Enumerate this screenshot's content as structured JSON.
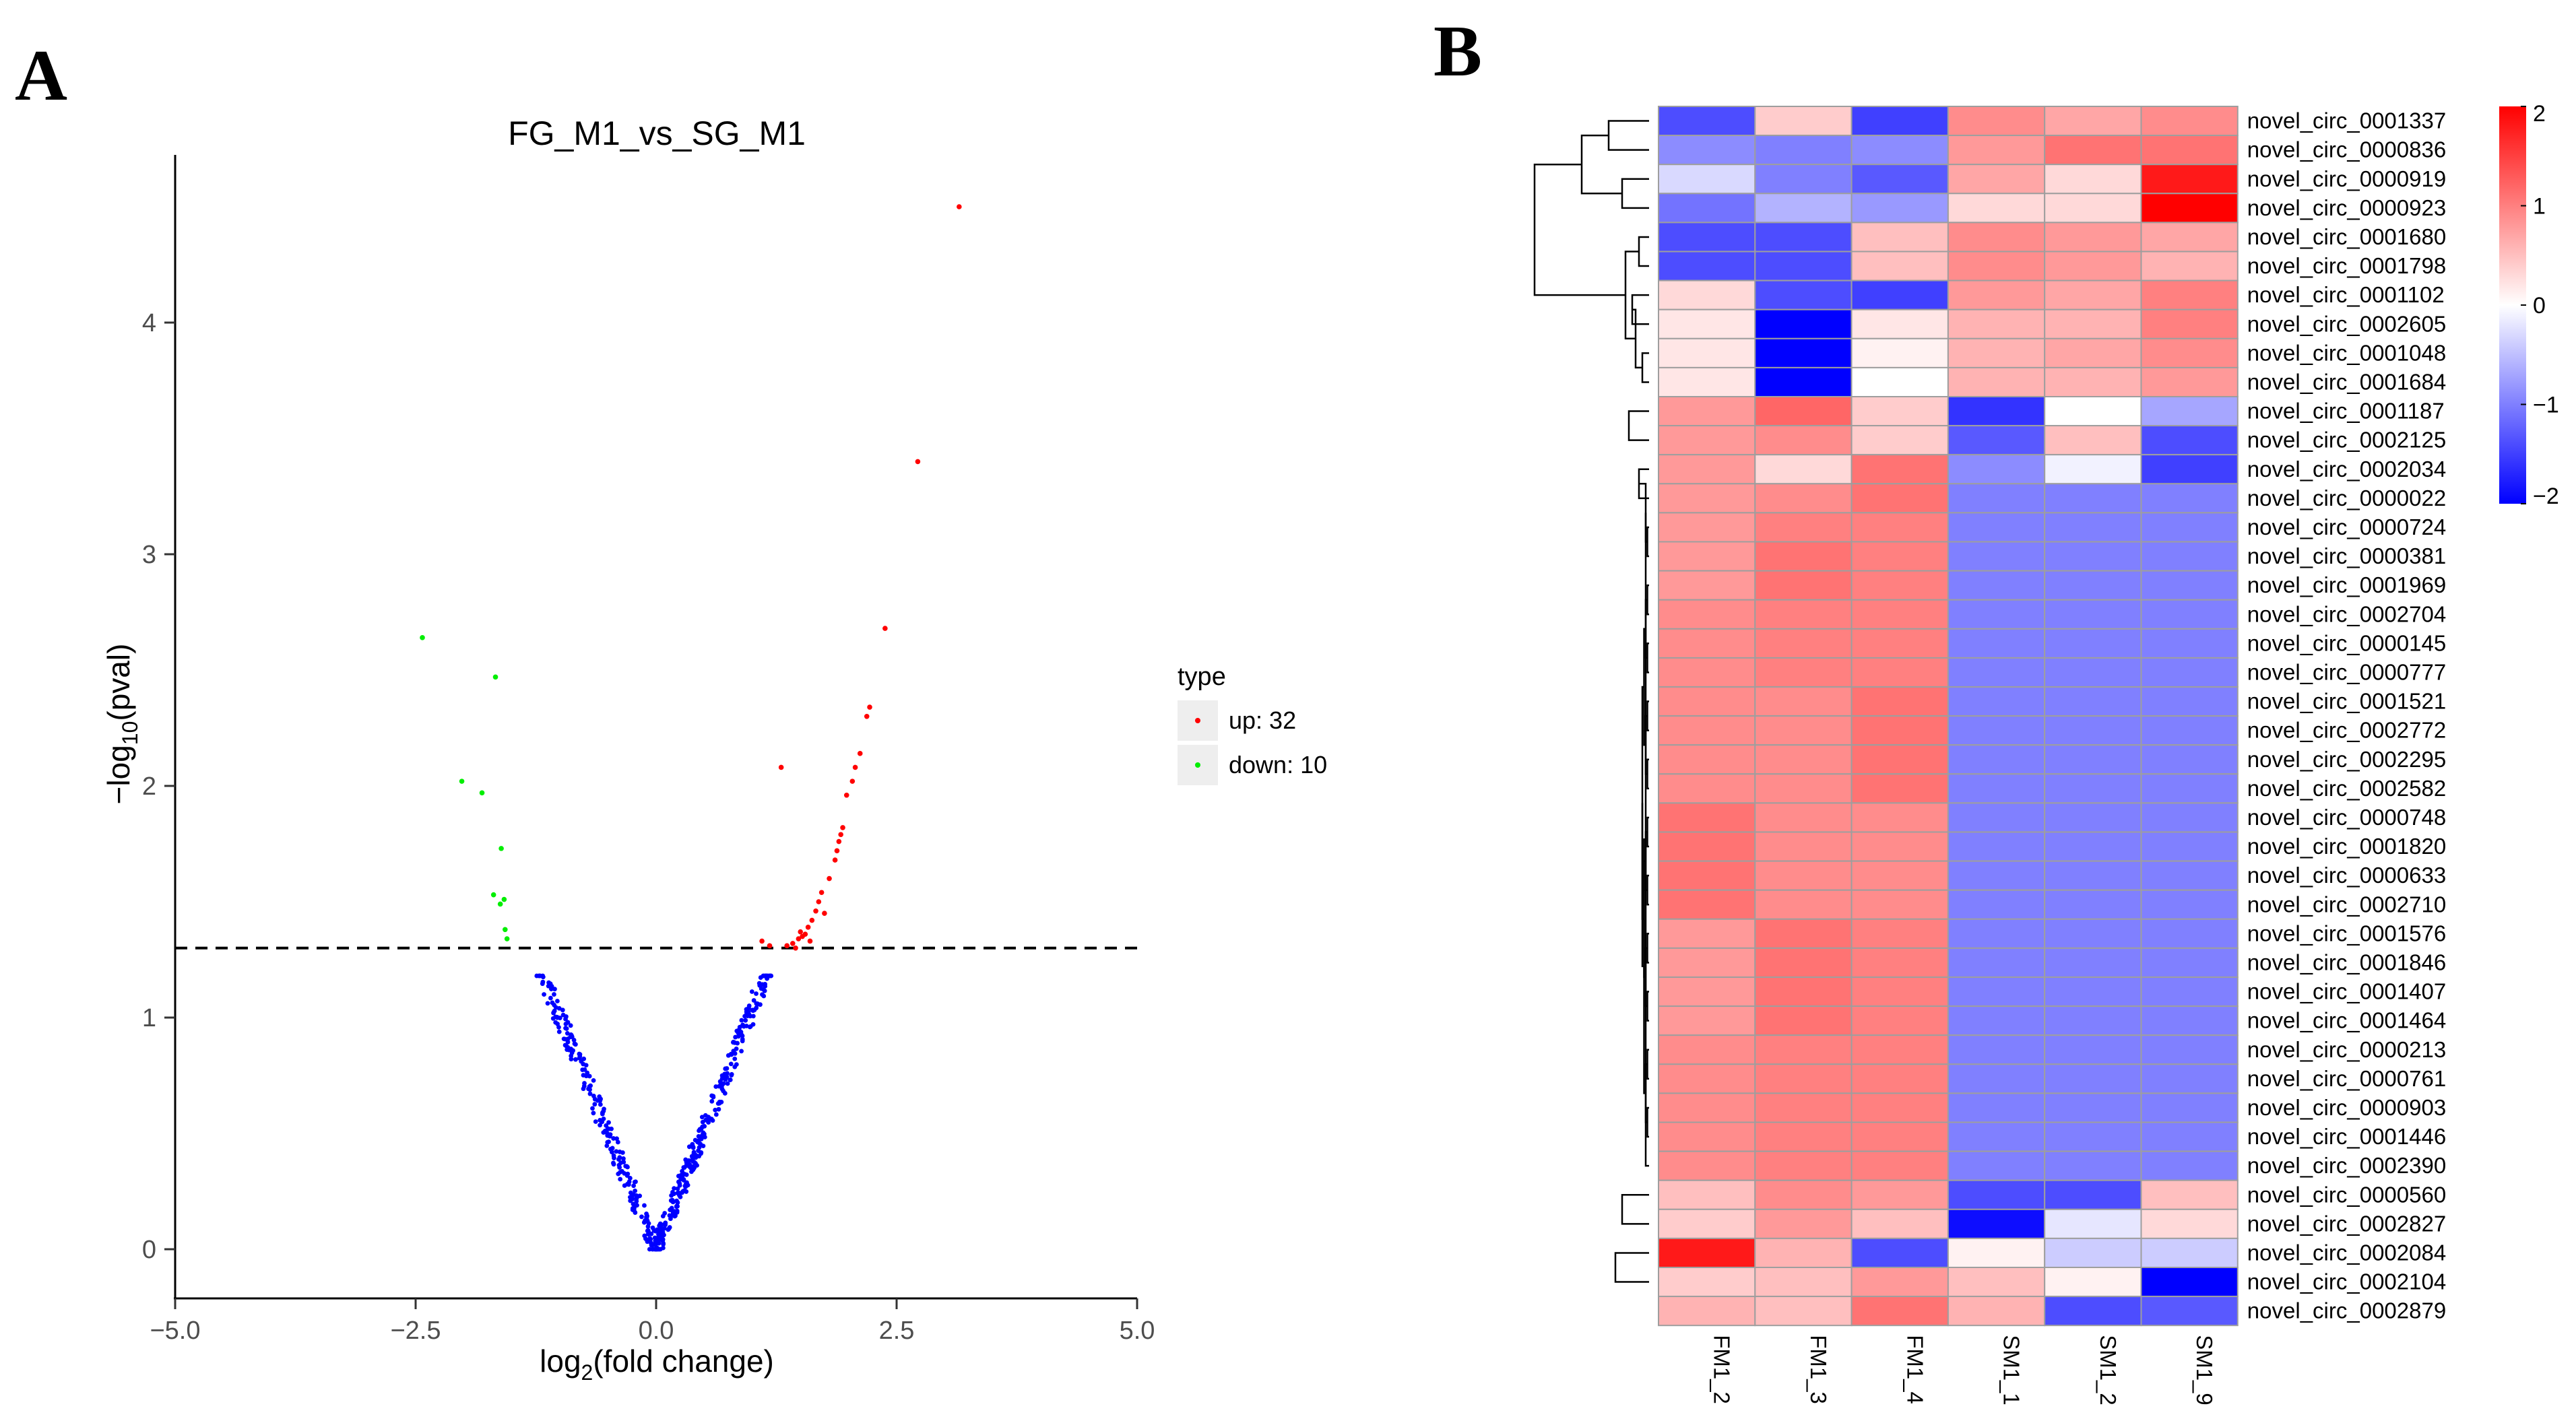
{
  "panels": {
    "a_letter": "A",
    "b_letter": "B"
  },
  "chart_data": [
    {
      "type": "scatter",
      "title": "FG_M1_vs_SG_M1",
      "xlabel_parts": [
        "log",
        "2",
        "(fold change)"
      ],
      "ylabel_parts": [
        "−log",
        "10",
        "(pval)"
      ],
      "xlim": [
        -5,
        5
      ],
      "ylim": [
        -0.25,
        4.7
      ],
      "xticks": [
        -5,
        -2.5,
        0,
        2.5,
        5
      ],
      "xtick_labels": [
        "−5.0",
        "−2.5",
        "0.0",
        "2.5",
        "5.0"
      ],
      "yticks": [
        0,
        1,
        2,
        3,
        4
      ],
      "ytick_labels": [
        "0",
        "1",
        "2",
        "3",
        "4"
      ],
      "threshold_y": 1.3,
      "legend": {
        "title": "type",
        "entries": [
          "up: 32",
          "down: 10"
        ],
        "position": "right"
      },
      "colors": {
        "up": "#ff0000",
        "down": "#00ee00",
        "ns": "#0000ff",
        "threshold": "#000000"
      },
      "series": [
        {
          "name": "up",
          "points": [
            [
              3.15,
              4.5
            ],
            [
              2.72,
              3.4
            ],
            [
              2.38,
              2.68
            ],
            [
              2.22,
              2.34
            ],
            [
              2.19,
              2.3
            ],
            [
              2.12,
              2.14
            ],
            [
              2.07,
              2.08
            ],
            [
              2.04,
              2.02
            ],
            [
              1.98,
              1.96
            ],
            [
              1.94,
              1.82
            ],
            [
              1.92,
              1.79
            ],
            [
              1.9,
              1.76
            ],
            [
              1.88,
              1.72
            ],
            [
              1.86,
              1.68
            ],
            [
              1.3,
              2.08
            ],
            [
              1.72,
              1.54
            ],
            [
              1.69,
              1.5
            ],
            [
              1.66,
              1.46
            ],
            [
              1.62,
              1.42
            ],
            [
              1.58,
              1.39
            ],
            [
              1.55,
              1.36
            ],
            [
              1.52,
              1.35
            ],
            [
              1.48,
              1.34
            ],
            [
              1.42,
              1.32
            ],
            [
              1.36,
              1.31
            ],
            [
              1.1,
              1.33
            ],
            [
              1.18,
              1.31
            ],
            [
              1.6,
              1.33
            ],
            [
              1.75,
              1.45
            ],
            [
              1.8,
              1.6
            ],
            [
              1.5,
              1.37
            ],
            [
              1.45,
              1.3
            ]
          ]
        },
        {
          "name": "down",
          "points": [
            [
              -2.43,
              2.64
            ],
            [
              -1.67,
              2.47
            ],
            [
              -2.02,
              2.02
            ],
            [
              -1.81,
              1.97
            ],
            [
              -1.61,
              1.73
            ],
            [
              -1.69,
              1.53
            ],
            [
              -1.58,
              1.51
            ],
            [
              -1.62,
              1.49
            ],
            [
              -1.57,
              1.38
            ],
            [
              -1.55,
              1.34
            ]
          ]
        }
      ]
    },
    {
      "type": "heatmap",
      "columns": [
        "FM1_2",
        "FM1_3",
        "FM1_4",
        "SM1_1",
        "SM1_2",
        "SM1_9"
      ],
      "rows": [
        "novel_circ_0001337",
        "novel_circ_0000836",
        "novel_circ_0000919",
        "novel_circ_0000923",
        "novel_circ_0001680",
        "novel_circ_0001798",
        "novel_circ_0001102",
        "novel_circ_0002605",
        "novel_circ_0001048",
        "novel_circ_0001684",
        "novel_circ_0001187",
        "novel_circ_0002125",
        "novel_circ_0002034",
        "novel_circ_0000022",
        "novel_circ_0000724",
        "novel_circ_0000381",
        "novel_circ_0001969",
        "novel_circ_0002704",
        "novel_circ_0000145",
        "novel_circ_0000777",
        "novel_circ_0001521",
        "novel_circ_0002772",
        "novel_circ_0002295",
        "novel_circ_0002582",
        "novel_circ_0000748",
        "novel_circ_0001820",
        "novel_circ_0000633",
        "novel_circ_0002710",
        "novel_circ_0001576",
        "novel_circ_0001846",
        "novel_circ_0001407",
        "novel_circ_0001464",
        "novel_circ_0000213",
        "novel_circ_0000761",
        "novel_circ_0000903",
        "novel_circ_0001446",
        "novel_circ_0002390",
        "novel_circ_0000560",
        "novel_circ_0002827",
        "novel_circ_0002084",
        "novel_circ_0002104",
        "novel_circ_0002879"
      ],
      "values": [
        [
          -1.4,
          0.4,
          -1.5,
          0.9,
          0.7,
          0.9
        ],
        [
          -0.9,
          -1.0,
          -0.9,
          0.8,
          1.1,
          1.1
        ],
        [
          -0.3,
          -1.0,
          -1.3,
          0.7,
          0.3,
          1.8
        ],
        [
          -1.1,
          -0.6,
          -0.8,
          0.3,
          0.3,
          2.0
        ],
        [
          -1.4,
          -1.4,
          0.5,
          0.9,
          0.8,
          0.7
        ],
        [
          -1.4,
          -1.4,
          0.5,
          0.9,
          0.8,
          0.6
        ],
        [
          0.3,
          -1.4,
          -1.5,
          0.8,
          0.7,
          1.0
        ],
        [
          0.2,
          -2.0,
          0.2,
          0.6,
          0.6,
          1.0
        ],
        [
          0.2,
          -2.0,
          0.1,
          0.6,
          0.7,
          0.9
        ],
        [
          0.2,
          -2.0,
          0.0,
          0.6,
          0.6,
          0.8
        ],
        [
          0.8,
          1.2,
          0.4,
          -1.6,
          0.0,
          -0.7
        ],
        [
          0.8,
          0.9,
          0.4,
          -1.3,
          0.5,
          -1.4
        ],
        [
          0.8,
          0.3,
          1.1,
          -0.9,
          -0.1,
          -1.5
        ],
        [
          0.8,
          0.9,
          1.1,
          -1.0,
          -1.0,
          -1.0
        ],
        [
          0.8,
          1.0,
          1.0,
          -1.0,
          -1.0,
          -1.0
        ],
        [
          0.8,
          1.1,
          1.0,
          -1.0,
          -1.0,
          -1.0
        ],
        [
          0.8,
          1.1,
          1.0,
          -1.0,
          -1.0,
          -1.0
        ],
        [
          0.9,
          1.0,
          1.0,
          -1.0,
          -1.0,
          -1.0
        ],
        [
          0.9,
          1.0,
          1.0,
          -1.0,
          -1.0,
          -1.0
        ],
        [
          0.9,
          1.0,
          1.0,
          -1.0,
          -1.0,
          -1.0
        ],
        [
          0.9,
          0.9,
          1.1,
          -1.0,
          -1.0,
          -1.0
        ],
        [
          0.9,
          0.9,
          1.1,
          -1.0,
          -1.0,
          -1.0
        ],
        [
          0.9,
          0.9,
          1.1,
          -1.0,
          -1.0,
          -1.0
        ],
        [
          0.9,
          0.9,
          1.1,
          -1.0,
          -1.0,
          -1.0
        ],
        [
          1.1,
          0.9,
          0.9,
          -1.0,
          -1.0,
          -1.0
        ],
        [
          1.1,
          0.9,
          0.9,
          -1.0,
          -1.0,
          -1.0
        ],
        [
          1.1,
          0.9,
          0.9,
          -1.0,
          -1.0,
          -1.0
        ],
        [
          1.1,
          0.9,
          0.9,
          -1.0,
          -1.0,
          -1.0
        ],
        [
          0.8,
          1.1,
          1.0,
          -1.0,
          -1.0,
          -1.0
        ],
        [
          0.8,
          1.1,
          1.0,
          -1.0,
          -1.0,
          -1.0
        ],
        [
          0.8,
          1.1,
          1.0,
          -1.0,
          -1.0,
          -1.0
        ],
        [
          0.8,
          1.1,
          1.0,
          -1.0,
          -1.0,
          -1.0
        ],
        [
          0.9,
          1.0,
          1.0,
          -1.0,
          -1.0,
          -1.0
        ],
        [
          0.9,
          1.0,
          1.0,
          -1.0,
          -1.0,
          -1.0
        ],
        [
          0.9,
          1.0,
          1.0,
          -1.0,
          -1.0,
          -1.0
        ],
        [
          0.9,
          1.0,
          1.0,
          -1.0,
          -1.0,
          -1.0
        ],
        [
          0.9,
          1.0,
          1.0,
          -1.0,
          -1.0,
          -1.0
        ],
        [
          0.5,
          0.9,
          0.8,
          -1.4,
          -1.4,
          0.5
        ],
        [
          0.4,
          0.8,
          0.5,
          -1.9,
          -0.2,
          0.3
        ],
        [
          1.8,
          0.6,
          -1.4,
          0.1,
          -0.4,
          -0.4
        ],
        [
          0.4,
          0.5,
          0.8,
          0.5,
          0.1,
          -2.0
        ],
        [
          0.6,
          0.5,
          1.1,
          0.6,
          -1.4,
          -1.3
        ]
      ],
      "colorbar": {
        "ticks": [
          2,
          1,
          0,
          -1,
          -2
        ],
        "tick_labels": [
          "2",
          "1",
          "0",
          "−1",
          "−2"
        ],
        "range": [
          -2,
          2
        ],
        "low": "#0000ff",
        "mid": "#ffffff",
        "high": "#ff0000"
      },
      "row_dendrogram": {
        "leaves": [
          0,
          1,
          2,
          3,
          4,
          5,
          6,
          7,
          8,
          9,
          10,
          11,
          12,
          13,
          14,
          15,
          16,
          17,
          18,
          19,
          20,
          21,
          22,
          23,
          24,
          25,
          26,
          27,
          28,
          29,
          30,
          31,
          32,
          33,
          34,
          35,
          36,
          37,
          38,
          39,
          40,
          41
        ],
        "merges": [
          [
            0,
            1,
            0.12
          ],
          [
            2,
            3,
            0.08
          ],
          [
            42,
            43,
            0.2
          ],
          [
            4,
            5,
            0.03
          ],
          [
            6,
            7,
            0.05
          ],
          [
            8,
            9,
            0.02
          ],
          [
            46,
            47,
            0.04
          ],
          [
            45,
            48,
            0.07
          ],
          [
            44,
            49,
            0.34
          ],
          [
            10,
            11,
            0.06
          ],
          [
            12,
            13,
            0.03
          ],
          [
            14,
            15,
            0.005
          ],
          [
            16,
            17,
            0.005
          ],
          [
            18,
            19,
            0.005
          ],
          [
            20,
            21,
            0.005
          ],
          [
            22,
            23,
            0.005
          ],
          [
            24,
            25,
            0.005
          ],
          [
            26,
            27,
            0.005
          ],
          [
            28,
            29,
            0.005
          ],
          [
            30,
            31,
            0.005
          ],
          [
            32,
            33,
            0.005
          ],
          [
            34,
            35,
            0.005
          ],
          [
            52,
            53,
            0.01
          ],
          [
            54,
            55,
            0.01
          ],
          [
            56,
            57,
            0.01
          ],
          [
            58,
            59,
            0.01
          ],
          [
            60,
            61,
            0.01
          ],
          [
            62,
            63,
            0.01
          ],
          [
            64,
            36,
            0.01
          ],
          [
            65,
            66,
            0.015
          ],
          [
            67,
            68,
            0.015
          ],
          [
            69,
            70,
            0.015
          ],
          [
            71,
            72,
            0.02
          ],
          [
            73,
            74,
            0.02
          ],
          [
            75,
            76,
            0.025
          ],
          [
            51,
            77,
            0.06
          ],
          [
            50,
            78,
            0.08
          ],
          [
            37,
            38,
            0.08
          ],
          [
            79,
            80,
            0.15
          ],
          [
            39,
            40,
            0.1
          ],
          [
            82,
            41,
            0.13
          ],
          [
            81,
            83,
            0.24
          ],
          [
            58.5,
            84,
            0.4
          ]
        ]
      }
    }
  ]
}
